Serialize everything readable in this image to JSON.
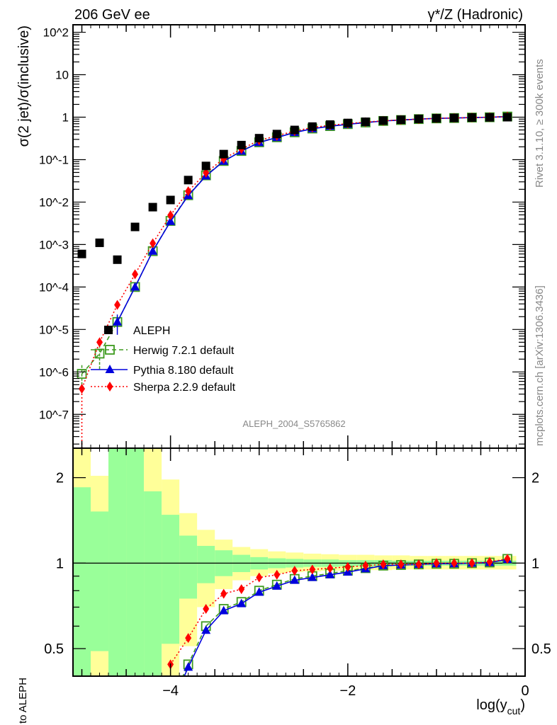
{
  "header": {
    "left_title": "206 GeV ee",
    "right_title": "γ*/Z (Hadronic)"
  },
  "side_text": {
    "rivet": "Rivet 3.1.10, ≥ 300k events",
    "mcplots": "mcplots.cern.ch [arXiv:1306.3436]"
  },
  "analysis_id": "ALEPH_2004_S5765862",
  "chart_data": [
    {
      "type": "scatter",
      "title": "206 GeV ee",
      "ylabel": "σ(2 jet)/σ(inclusive)",
      "xlabel": "log(y_cut)",
      "yscale": "log",
      "xlim": [
        -5.1,
        0
      ],
      "ylim": [
        1.6e-08,
        150
      ],
      "y_tick_labels": [
        "10^2",
        "10",
        "1",
        "10^-1",
        "10^-2",
        "10^-3",
        "10^-4",
        "10^-5",
        "10^-6",
        "10^-7"
      ],
      "y_tick_values": [
        100,
        10,
        1,
        0.1,
        0.01,
        0.001,
        0.0001,
        1e-05,
        1e-06,
        1e-07
      ],
      "legend_position": "middle-left",
      "x": [
        -5.0,
        -4.8,
        -4.6,
        -4.4,
        -4.2,
        -4.0,
        -3.8,
        -3.6,
        -3.4,
        -3.2,
        -3.0,
        -2.8,
        -2.6,
        -2.4,
        -2.2,
        -2.0,
        -1.8,
        -1.6,
        -1.4,
        -1.2,
        -1.0,
        -0.8,
        -0.6,
        -0.4,
        -0.2
      ],
      "series": [
        {
          "name": "ALEPH",
          "color": "#000000",
          "marker": "square",
          "values": [
            0.0006,
            0.0011,
            0.00044,
            0.0026,
            0.0076,
            0.0112,
            0.033,
            0.071,
            0.135,
            0.22,
            0.32,
            0.4,
            0.5,
            0.6,
            0.67,
            0.73,
            0.78,
            0.83,
            0.87,
            0.91,
            0.94,
            0.96,
            0.98,
            0.99,
            1.0
          ]
        },
        {
          "name": "Herwig 7.2.1 default",
          "color": "#3d9a1f",
          "marker": "open-square",
          "line": "dashed",
          "values": [
            9e-07,
            2.7e-06,
            1.5e-05,
            0.0001,
            0.0007,
            0.0036,
            0.0145,
            0.0426,
            0.093,
            0.16,
            0.256,
            0.336,
            0.44,
            0.54,
            0.616,
            0.686,
            0.75,
            0.815,
            0.857,
            0.901,
            0.935,
            0.955,
            0.98,
            0.995,
            1.035
          ],
          "rel_err": [
            0.6,
            0.6,
            0,
            0,
            0,
            0,
            0,
            0,
            0,
            0,
            0,
            0,
            0,
            0,
            0,
            0,
            0,
            0,
            0,
            0,
            0,
            0,
            0,
            0,
            0
          ],
          "ratio": [
            null,
            null,
            null,
            null,
            null,
            0.32,
            0.44,
            0.6,
            0.69,
            0.73,
            0.8,
            0.84,
            0.88,
            0.9,
            0.92,
            0.94,
            0.96,
            0.98,
            0.985,
            0.99,
            0.995,
            0.995,
            1.0,
            1.005,
            1.035
          ]
        },
        {
          "name": "Pythia 8.180 default",
          "color": "#0000dd",
          "marker": "triangle",
          "line": "solid",
          "values": [
            null,
            null,
            1.5e-05,
            0.0001,
            0.0007,
            0.0035,
            0.0142,
            0.0412,
            0.0918,
            0.158,
            0.253,
            0.332,
            0.435,
            0.534,
            0.61,
            0.679,
            0.745,
            0.813,
            0.857,
            0.901,
            0.935,
            0.955,
            0.98,
            0.995,
            1.03
          ],
          "rel_err": [
            0,
            0,
            0.5,
            0,
            0,
            0,
            0,
            0,
            0,
            0,
            0,
            0,
            0,
            0,
            0,
            0,
            0,
            0,
            0,
            0,
            0,
            0,
            0,
            0,
            0
          ],
          "ratio": [
            null,
            null,
            null,
            null,
            null,
            0.31,
            0.43,
            0.58,
            0.68,
            0.72,
            0.79,
            0.83,
            0.87,
            0.89,
            0.91,
            0.93,
            0.955,
            0.98,
            0.985,
            0.99,
            0.995,
            0.995,
            1.0,
            1.005,
            1.03
          ]
        },
        {
          "name": "Sherpa 2.2.9 default",
          "color": "#ff0000",
          "marker": "diamond",
          "line": "dotted",
          "drops_to_zero_left": true,
          "values": [
            4e-07,
            5e-06,
            3.8e-05,
            0.0002,
            0.00107,
            0.0049,
            0.018,
            0.049,
            0.105,
            0.178,
            0.285,
            0.364,
            0.47,
            0.57,
            0.643,
            0.708,
            0.764,
            0.822,
            0.861,
            0.901,
            0.94,
            0.96,
            0.98,
            1.0,
            1.035
          ],
          "ratio": [
            null,
            null,
            null,
            null,
            null,
            0.44,
            0.545,
            0.69,
            0.78,
            0.81,
            0.89,
            0.91,
            0.94,
            0.95,
            0.96,
            0.97,
            0.98,
            0.99,
            0.99,
            0.99,
            1.0,
            1.0,
            1.0,
            1.01,
            1.035
          ]
        }
      ]
    },
    {
      "type": "area",
      "ylabel": "Ratio to ALEPH",
      "xlabel": "log(y_cut)",
      "yscale": "log",
      "xlim": [
        -5.1,
        0
      ],
      "ylim": [
        0.4,
        2.54
      ],
      "y_tick_labels": [
        "2",
        "1",
        "0.5"
      ],
      "y_tick_values": [
        2,
        1,
        0.5
      ],
      "x_tick_labels": [
        "−4",
        "−2",
        "0"
      ],
      "x_tick_values": [
        -4,
        -2,
        0
      ],
      "bin_width": 0.2,
      "band_colors": {
        "total": "#ffff99",
        "stat": "#99ff99"
      },
      "bands": {
        "total_up": [
          null,
          2.03,
          null,
          null,
          null,
          1.97,
          1.5,
          1.31,
          1.21,
          1.14,
          1.12,
          1.1,
          1.09,
          1.08,
          1.075,
          1.07,
          1.07,
          1.065,
          1.065,
          1.06,
          1.06,
          1.06,
          1.06,
          1.06,
          1.06
        ],
        "stat_up": [
          1.85,
          1.52,
          null,
          null,
          1.79,
          1.48,
          1.25,
          1.15,
          1.11,
          1.07,
          1.05,
          1.04,
          1.035,
          1.03,
          1.03,
          1.025,
          1.025,
          1.025,
          1.02,
          1.02,
          1.02,
          1.02,
          1.02,
          1.02,
          1.02
        ],
        "stat_down": [
          null,
          0.49,
          null,
          null,
          null,
          0.52,
          0.75,
          0.85,
          0.9,
          0.93,
          0.95,
          0.96,
          0.965,
          0.97,
          0.97,
          0.975,
          0.975,
          0.975,
          0.98,
          0.98,
          0.98,
          0.98,
          0.98,
          0.98,
          0.98
        ],
        "total_down": [
          null,
          null,
          null,
          null,
          null,
          null,
          0.51,
          0.7,
          0.81,
          0.87,
          0.9,
          0.92,
          0.93,
          0.935,
          0.94,
          0.94,
          0.945,
          0.945,
          0.95,
          0.95,
          0.95,
          0.95,
          0.95,
          0.95,
          0.95
        ]
      }
    }
  ]
}
